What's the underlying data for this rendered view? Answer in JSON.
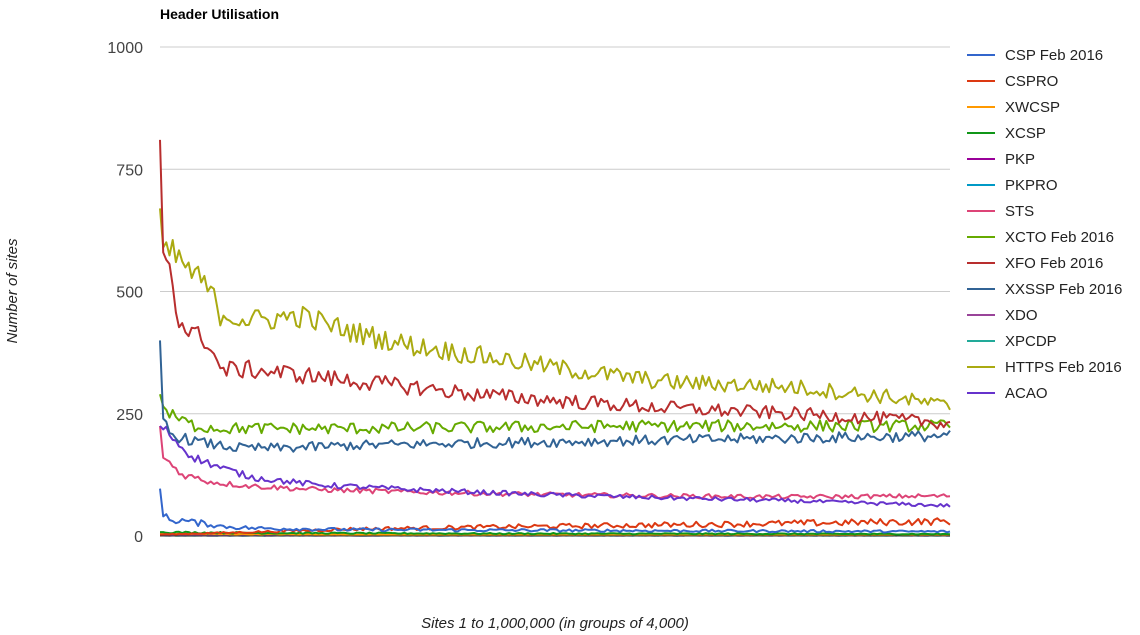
{
  "chart_data": {
    "type": "line",
    "title": "Header Utilisation",
    "xlabel": "Sites 1 to 1,000,000 (in groups of 4,000)",
    "ylabel": "Number of sites",
    "ylim": [
      0,
      1000
    ],
    "yticks": [
      "0",
      "250",
      "500",
      "750",
      "1000"
    ],
    "x_range": [
      1,
      250
    ],
    "grid": true,
    "legend_position": "right",
    "series": [
      {
        "name": "CSP Feb 2016",
        "color": "#3366cc",
        "points": [
          [
            1,
            97
          ],
          [
            2,
            40
          ],
          [
            4,
            33
          ],
          [
            8,
            32
          ],
          [
            12,
            27
          ],
          [
            16,
            25
          ],
          [
            20,
            20
          ],
          [
            25,
            18
          ],
          [
            30,
            16
          ],
          [
            40,
            15
          ],
          [
            60,
            13
          ],
          [
            100,
            12
          ],
          [
            150,
            11
          ],
          [
            200,
            10
          ],
          [
            250,
            9
          ]
        ]
      },
      {
        "name": "CSPRO",
        "color": "#dc3912",
        "points": [
          [
            1,
            3
          ],
          [
            30,
            8
          ],
          [
            60,
            14
          ],
          [
            100,
            18
          ],
          [
            150,
            22
          ],
          [
            200,
            26
          ],
          [
            250,
            30
          ]
        ]
      },
      {
        "name": "XWCSP",
        "color": "#ff9900",
        "points": [
          [
            1,
            5
          ],
          [
            20,
            4
          ],
          [
            60,
            3
          ],
          [
            120,
            2
          ],
          [
            250,
            2
          ]
        ]
      },
      {
        "name": "XCSP",
        "color": "#109618",
        "points": [
          [
            1,
            8
          ],
          [
            10,
            7
          ],
          [
            40,
            6
          ],
          [
            100,
            5
          ],
          [
            250,
            4
          ]
        ]
      },
      {
        "name": "PKP",
        "color": "#990099",
        "points": [
          [
            1,
            1
          ],
          [
            250,
            1
          ]
        ]
      },
      {
        "name": "PKPRO",
        "color": "#0099c6",
        "points": [
          [
            1,
            1
          ],
          [
            250,
            1
          ]
        ]
      },
      {
        "name": "STS",
        "color": "#dd4477",
        "points": [
          [
            1,
            225
          ],
          [
            2,
            160
          ],
          [
            4,
            150
          ],
          [
            8,
            125
          ],
          [
            12,
            120
          ],
          [
            16,
            112
          ],
          [
            20,
            108
          ],
          [
            30,
            102
          ],
          [
            50,
            95
          ],
          [
            80,
            90
          ],
          [
            120,
            85
          ],
          [
            160,
            82
          ],
          [
            200,
            80
          ],
          [
            250,
            82
          ]
        ]
      },
      {
        "name": "XCTO Feb 2016",
        "color": "#66aa00",
        "points": [
          [
            1,
            290
          ],
          [
            2,
            265
          ],
          [
            4,
            248
          ],
          [
            8,
            236
          ],
          [
            12,
            225
          ],
          [
            20,
            220
          ],
          [
            30,
            220
          ],
          [
            60,
            220
          ],
          [
            100,
            222
          ],
          [
            150,
            225
          ],
          [
            200,
            225
          ],
          [
            250,
            225
          ]
        ]
      },
      {
        "name": "XFO Feb 2016",
        "color": "#b82e2e",
        "points": [
          [
            1,
            810
          ],
          [
            2,
            580
          ],
          [
            4,
            560
          ],
          [
            6,
            470
          ],
          [
            8,
            430
          ],
          [
            12,
            410
          ],
          [
            16,
            400
          ],
          [
            20,
            340
          ],
          [
            30,
            340
          ],
          [
            45,
            330
          ],
          [
            60,
            318
          ],
          [
            80,
            305
          ],
          [
            100,
            290
          ],
          [
            130,
            275
          ],
          [
            160,
            262
          ],
          [
            200,
            250
          ],
          [
            230,
            240
          ],
          [
            250,
            230
          ]
        ]
      },
      {
        "name": "XXSSP Feb 2016",
        "color": "#316395",
        "points": [
          [
            1,
            400
          ],
          [
            2,
            240
          ],
          [
            4,
            210
          ],
          [
            8,
            200
          ],
          [
            15,
            190
          ],
          [
            25,
            180
          ],
          [
            40,
            180
          ],
          [
            60,
            185
          ],
          [
            100,
            190
          ],
          [
            150,
            195
          ],
          [
            200,
            200
          ],
          [
            250,
            205
          ]
        ]
      },
      {
        "name": "XDO",
        "color": "#994499",
        "points": [
          [
            1,
            2
          ],
          [
            250,
            2
          ]
        ]
      },
      {
        "name": "XPCDP",
        "color": "#22aa99",
        "points": [
          [
            1,
            1
          ],
          [
            250,
            1
          ]
        ]
      },
      {
        "name": "HTTPS Feb 2016",
        "color": "#aaaa11",
        "points": [
          [
            1,
            670
          ],
          [
            2,
            590
          ],
          [
            4,
            580
          ],
          [
            8,
            560
          ],
          [
            12,
            530
          ],
          [
            16,
            510
          ],
          [
            20,
            455
          ],
          [
            30,
            440
          ],
          [
            45,
            450
          ],
          [
            60,
            420
          ],
          [
            80,
            390
          ],
          [
            100,
            370
          ],
          [
            130,
            340
          ],
          [
            160,
            315
          ],
          [
            200,
            305
          ],
          [
            230,
            285
          ],
          [
            250,
            265
          ]
        ]
      },
      {
        "name": "ACAO",
        "color": "#6633cc",
        "points": [
          [
            1,
            225
          ],
          [
            2,
            218
          ],
          [
            4,
            210
          ],
          [
            8,
            180
          ],
          [
            12,
            160
          ],
          [
            20,
            140
          ],
          [
            30,
            120
          ],
          [
            50,
            105
          ],
          [
            80,
            95
          ],
          [
            120,
            85
          ],
          [
            160,
            78
          ],
          [
            200,
            72
          ],
          [
            250,
            62
          ]
        ]
      }
    ]
  }
}
